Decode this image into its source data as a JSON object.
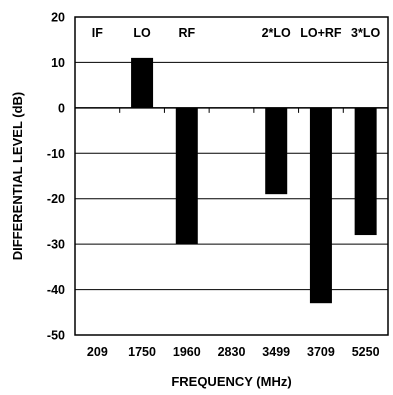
{
  "chart_data": {
    "type": "bar",
    "categories": [
      "209",
      "1750",
      "1960",
      "2830",
      "3499",
      "3709",
      "5250"
    ],
    "series_labels": [
      "IF",
      "LO",
      "RF",
      "",
      "2*LO",
      "LO+RF",
      "3*LO"
    ],
    "values": [
      0,
      11,
      -30,
      0,
      -19,
      -43,
      -28
    ],
    "xlabel": "FREQUENCY (MHz)",
    "ylabel": "DIFFERENTIAL LEVEL (dB)",
    "ylim": [
      -50,
      20
    ],
    "yticks": [
      20,
      10,
      0,
      -10,
      -20,
      -30,
      -40,
      -50
    ],
    "grid": true,
    "bar_color": "#000000"
  }
}
